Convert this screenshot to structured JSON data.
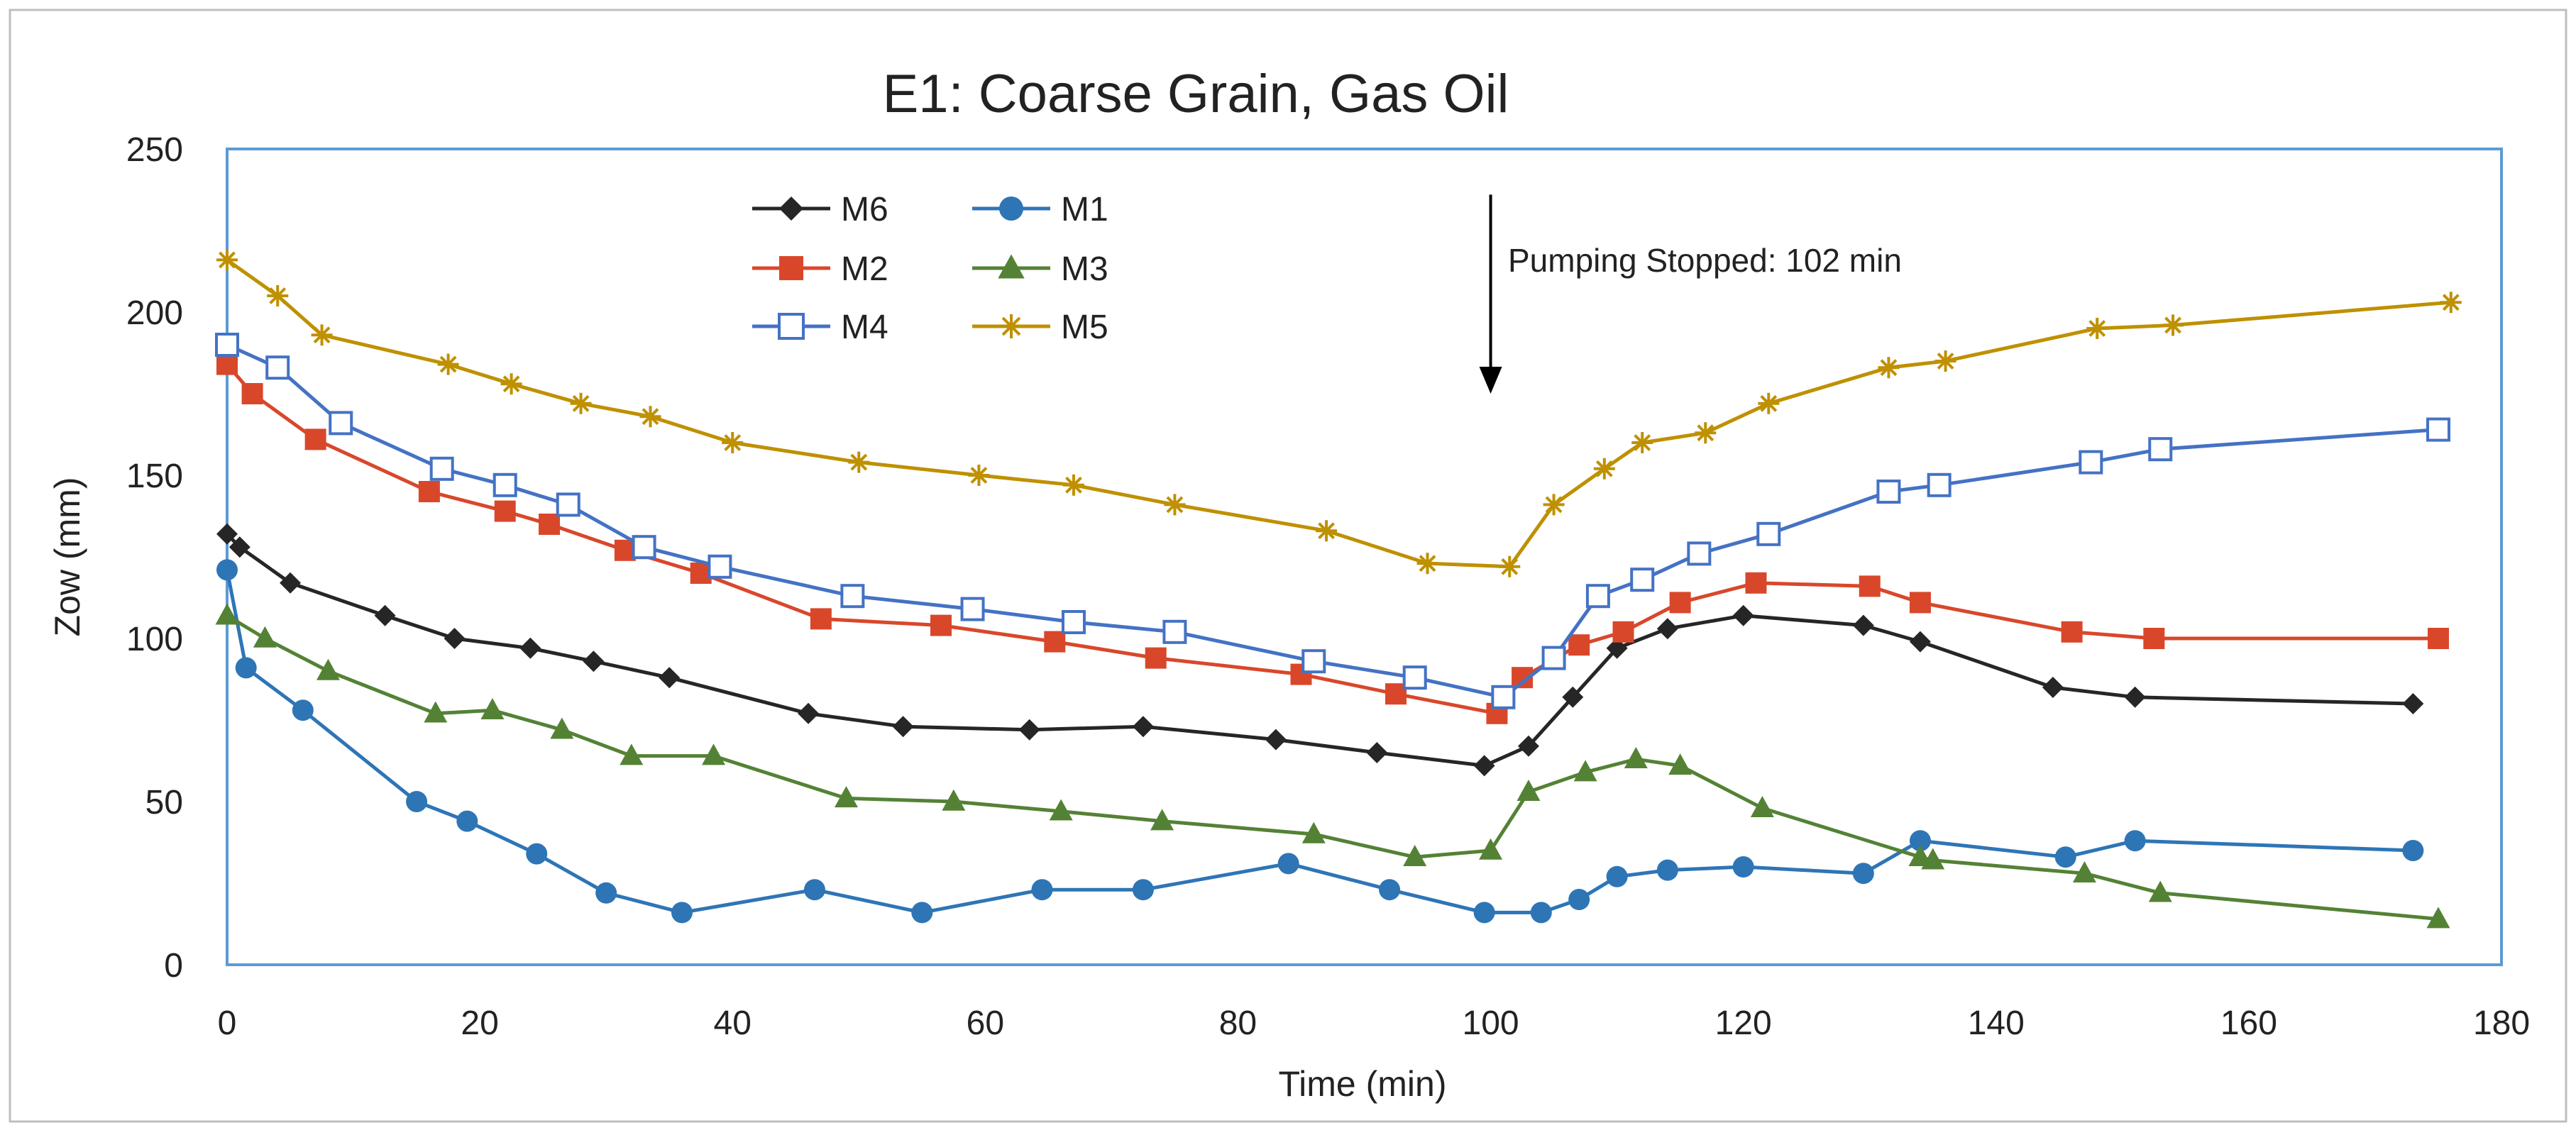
{
  "chart_data": {
    "type": "line",
    "title": "E1: Coarse Grain, Gas Oil",
    "xlabel": "Time (min)",
    "ylabel": "Zow (mm)",
    "xlim": [
      0,
      180
    ],
    "ylim": [
      0,
      250
    ],
    "x_ticks": [
      0,
      20,
      40,
      60,
      80,
      100,
      120,
      140,
      160,
      180
    ],
    "y_ticks": [
      0,
      50,
      100,
      150,
      200,
      250
    ],
    "grid": false,
    "legend_position": "top-left",
    "annotation": {
      "text": "Pumping Stopped: 102 min",
      "x": 100,
      "arrow_from_y": 236,
      "arrow_to_y": 175
    },
    "series": [
      {
        "name": "M6",
        "color": "#262626",
        "marker": "diamond",
        "points": [
          [
            0,
            132
          ],
          [
            1,
            128
          ],
          [
            5,
            117
          ],
          [
            12.5,
            107
          ],
          [
            18,
            100
          ],
          [
            24,
            97
          ],
          [
            29,
            93
          ],
          [
            35,
            88
          ],
          [
            46,
            77
          ],
          [
            53.5,
            73
          ],
          [
            63.5,
            72
          ],
          [
            72.5,
            73
          ],
          [
            83,
            69
          ],
          [
            91,
            65
          ],
          [
            99.5,
            61
          ],
          [
            103,
            67
          ],
          [
            106.5,
            82
          ],
          [
            110,
            97
          ],
          [
            114,
            103
          ],
          [
            120,
            107
          ],
          [
            129.5,
            104
          ],
          [
            134,
            99
          ],
          [
            144.5,
            85
          ],
          [
            151,
            82
          ],
          [
            173,
            80
          ]
        ]
      },
      {
        "name": "M1",
        "color": "#2E75B6",
        "marker": "circle",
        "points": [
          [
            0,
            121
          ],
          [
            1.5,
            91
          ],
          [
            6,
            78
          ],
          [
            15,
            50
          ],
          [
            19,
            44
          ],
          [
            24.5,
            34
          ],
          [
            30,
            22
          ],
          [
            36,
            16
          ],
          [
            46.5,
            23
          ],
          [
            55,
            16
          ],
          [
            64.5,
            23
          ],
          [
            72.5,
            23
          ],
          [
            84,
            31
          ],
          [
            92,
            23
          ],
          [
            99.5,
            16
          ],
          [
            104,
            16
          ],
          [
            107,
            20
          ],
          [
            110,
            27
          ],
          [
            114,
            29
          ],
          [
            120,
            30
          ],
          [
            129.5,
            28
          ],
          [
            134,
            38
          ],
          [
            145.5,
            33
          ],
          [
            151,
            38
          ],
          [
            173,
            35
          ]
        ]
      },
      {
        "name": "M2",
        "color": "#D9472B",
        "marker": "square",
        "points": [
          [
            0,
            184
          ],
          [
            2,
            175
          ],
          [
            7,
            161
          ],
          [
            16,
            145
          ],
          [
            22,
            139
          ],
          [
            25.5,
            135
          ],
          [
            31.5,
            127
          ],
          [
            37.5,
            120
          ],
          [
            47,
            106
          ],
          [
            56.5,
            104
          ],
          [
            65.5,
            99
          ],
          [
            73.5,
            94
          ],
          [
            85,
            89
          ],
          [
            92.5,
            83
          ],
          [
            100.5,
            77
          ],
          [
            102.5,
            88
          ],
          [
            107,
            98
          ],
          [
            110.5,
            102
          ],
          [
            115,
            111
          ],
          [
            121,
            117
          ],
          [
            130,
            116
          ],
          [
            134,
            111
          ],
          [
            146,
            102
          ],
          [
            152.5,
            100
          ],
          [
            175,
            100
          ]
        ]
      },
      {
        "name": "M3",
        "color": "#548235",
        "marker": "triangle",
        "points": [
          [
            0,
            107
          ],
          [
            3,
            100
          ],
          [
            8,
            90
          ],
          [
            16.5,
            77
          ],
          [
            21,
            78
          ],
          [
            26.5,
            72
          ],
          [
            32,
            64
          ],
          [
            38.5,
            64
          ],
          [
            49,
            51
          ],
          [
            57.5,
            50
          ],
          [
            66,
            47
          ],
          [
            74,
            44
          ],
          [
            86,
            40
          ],
          [
            94,
            33
          ],
          [
            100,
            35
          ],
          [
            103,
            53
          ],
          [
            107.5,
            59
          ],
          [
            111.5,
            63
          ],
          [
            115,
            61
          ],
          [
            121.5,
            48
          ],
          [
            134,
            33
          ],
          [
            135,
            32
          ],
          [
            147,
            28
          ],
          [
            153,
            22
          ],
          [
            175,
            14
          ]
        ]
      },
      {
        "name": "M4",
        "color": "#4472C4",
        "marker": "square-open",
        "points": [
          [
            0,
            190
          ],
          [
            4,
            183
          ],
          [
            9,
            166
          ],
          [
            17,
            152
          ],
          [
            22,
            147
          ],
          [
            27,
            141
          ],
          [
            33,
            128
          ],
          [
            39,
            122
          ],
          [
            49.5,
            113
          ],
          [
            59,
            109
          ],
          [
            67,
            105
          ],
          [
            75,
            102
          ],
          [
            86,
            93
          ],
          [
            94,
            88
          ],
          [
            101,
            82
          ],
          [
            105,
            94
          ],
          [
            108.5,
            113
          ],
          [
            112,
            118
          ],
          [
            116.5,
            126
          ],
          [
            122,
            132
          ],
          [
            131.5,
            145
          ],
          [
            135.5,
            147
          ],
          [
            147.5,
            154
          ],
          [
            153,
            158
          ],
          [
            175,
            164
          ]
        ]
      },
      {
        "name": "M5",
        "color": "#BF9000",
        "marker": "star",
        "points": [
          [
            0,
            216
          ],
          [
            4,
            205
          ],
          [
            7.5,
            193
          ],
          [
            17.5,
            184
          ],
          [
            22.5,
            178
          ],
          [
            28,
            172
          ],
          [
            33.5,
            168
          ],
          [
            40,
            160
          ],
          [
            50,
            154
          ],
          [
            59.5,
            150
          ],
          [
            67,
            147
          ],
          [
            75,
            141
          ],
          [
            87,
            133
          ],
          [
            95,
            123
          ],
          [
            101.5,
            122
          ],
          [
            105,
            141
          ],
          [
            109,
            152
          ],
          [
            112,
            160
          ],
          [
            117,
            163
          ],
          [
            122,
            172
          ],
          [
            131.5,
            183
          ],
          [
            136,
            185
          ],
          [
            148,
            195
          ],
          [
            154,
            196
          ],
          [
            176,
            203
          ]
        ]
      }
    ]
  }
}
